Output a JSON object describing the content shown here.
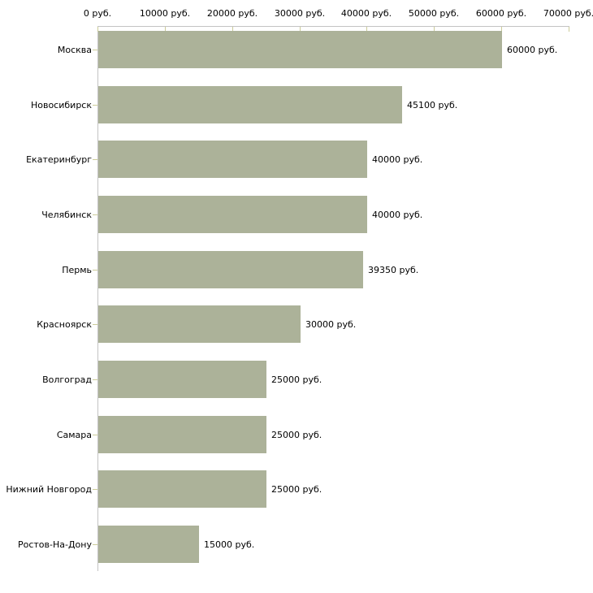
{
  "chart_data": {
    "type": "bar",
    "orientation": "horizontal",
    "title": "",
    "xlabel": "",
    "ylabel": "",
    "categories": [
      "Москва",
      "Новосибирск",
      "Екатеринбург",
      "Челябинск",
      "Пермь",
      "Красноярск",
      "Волгоград",
      "Самара",
      "Нижний Новгород",
      "Ростов-На-Дону"
    ],
    "values": [
      60000,
      45100,
      40000,
      40000,
      39350,
      30000,
      25000,
      25000,
      25000,
      15000
    ],
    "value_labels": [
      "60000 руб.",
      "45100 руб.",
      "40000 руб.",
      "40000 руб.",
      "39350 руб.",
      "30000 руб.",
      "25000 руб.",
      "25000 руб.",
      "25000 руб.",
      "15000 руб."
    ],
    "x_ticks": [
      0,
      10000,
      20000,
      30000,
      40000,
      50000,
      60000,
      70000
    ],
    "x_tick_labels": [
      "0 руб.",
      "10000 руб.",
      "20000 руб.",
      "30000 руб.",
      "40000 руб.",
      "50000 руб.",
      "60000 руб.",
      "70000 руб."
    ],
    "xlim": [
      0,
      70000
    ],
    "unit": "руб.",
    "grid": false,
    "legend": false,
    "axis_position": "top",
    "bar_color": "#acb299",
    "axis_color": "#c3c3c3",
    "tick_color": "#cccc99",
    "text_color": "#000000"
  }
}
